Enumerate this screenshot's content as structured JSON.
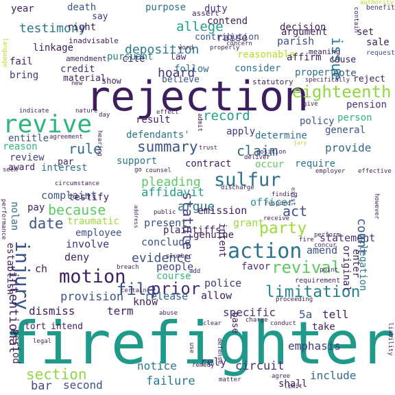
{
  "words": [
    {
      "text": "firefighter",
      "color": "#1f9a8a"
    },
    {
      "text": "rejection",
      "color": "#3e1f5e"
    },
    {
      "text": "revive",
      "color": "#2fb47c"
    },
    {
      "text": "injury",
      "color": "#3b528b"
    },
    {
      "text": "action",
      "color": "#2c728e"
    },
    {
      "text": "motion",
      "color": "#3e1f5e"
    },
    {
      "text": "sulfur",
      "color": "#2c728e"
    },
    {
      "text": "revival",
      "color": "#5ec962"
    },
    {
      "text": "eighteenth",
      "color": "#8fd744"
    },
    {
      "text": "limitation",
      "color": "#26828e"
    },
    {
      "text": "file",
      "color": "#3b528b"
    },
    {
      "text": "prior",
      "color": "#472d7b"
    },
    {
      "text": "section",
      "color": "#8fd744"
    },
    {
      "text": "statute",
      "color": "#453781"
    },
    {
      "text": "date",
      "color": "#3b528b"
    },
    {
      "text": "summary",
      "color": "#3b528b"
    },
    {
      "text": "party",
      "color": "#9bd93c"
    },
    {
      "text": "claim",
      "color": "#31688e"
    },
    {
      "text": "rule",
      "color": "#31688e"
    },
    {
      "text": "because",
      "color": "#5ec962"
    },
    {
      "text": "evidence",
      "color": "#3b528b"
    },
    {
      "text": "record",
      "color": "#1fa187"
    },
    {
      "text": "issue",
      "color": "#2a788e"
    },
    {
      "text": "act",
      "color": "#3b528b"
    },
    {
      "text": "count",
      "color": "#3b528b"
    },
    {
      "text": "allege",
      "color": "#1fa187"
    },
    {
      "text": "deposition",
      "color": "#2a788e"
    },
    {
      "text": "hoard",
      "color": "#46337e"
    },
    {
      "text": "pleading",
      "color": "#5ec962"
    },
    {
      "text": "argue",
      "color": "#2c728e"
    },
    {
      "text": "affidavit",
      "color": "#1fa187"
    },
    {
      "text": "provision",
      "color": "#3b528b"
    },
    {
      "text": "specific",
      "color": "#46337e"
    },
    {
      "text": "emphasis",
      "color": "#44397e"
    },
    {
      "text": "circuit",
      "color": "#472d7b"
    },
    {
      "text": "failure",
      "color": "#2a788e"
    },
    {
      "text": "notice",
      "color": "#2a788e"
    },
    {
      "text": "bar",
      "color": "#404688"
    },
    {
      "text": "second",
      "color": "#3b528b"
    },
    {
      "text": "include",
      "color": "#31688e"
    },
    {
      "text": "rely",
      "color": "#46337e"
    },
    {
      "text": "officer",
      "color": "#20928c"
    },
    {
      "text": "emission",
      "color": "#3e1f5e"
    },
    {
      "text": "grant",
      "color": "#9bd93c"
    },
    {
      "text": "present",
      "color": "#3b528b"
    },
    {
      "text": "statement",
      "color": "#46337e"
    },
    {
      "text": "amend",
      "color": "#3b528b"
    },
    {
      "text": "allegation",
      "color": "#2a788e"
    },
    {
      "text": "5a",
      "color": "#3b528b"
    },
    {
      "text": "tell",
      "color": "#3e1f5e"
    },
    {
      "text": "dismiss",
      "color": "#3e1f5e"
    },
    {
      "text": "term",
      "color": "#3e1f5e"
    },
    {
      "text": "release",
      "color": "#31688e"
    },
    {
      "text": "allow",
      "color": "#3e1f5e"
    },
    {
      "text": "police",
      "color": "#46337e"
    },
    {
      "text": "people",
      "color": "#404688"
    },
    {
      "text": "course",
      "color": "#35b779"
    },
    {
      "text": "favor",
      "color": "#46337e"
    },
    {
      "text": "know",
      "color": "#3e1f5e"
    },
    {
      "text": "conclude",
      "color": "#3b528b"
    },
    {
      "text": "deny",
      "color": "#3e1f5e"
    },
    {
      "text": "involve",
      "color": "#46337e"
    },
    {
      "text": "employee",
      "color": "#3b528b"
    },
    {
      "text": "traumatic",
      "color": "#9bd93c"
    },
    {
      "text": "complaint",
      "color": "#3b528b"
    },
    {
      "text": "testify",
      "color": "#3e1f5e"
    },
    {
      "text": "pay",
      "color": "#3e1f5e"
    },
    {
      "text": "nolan",
      "color": "#31688e"
    },
    {
      "text": "interest",
      "color": "#2c728e"
    },
    {
      "text": "support",
      "color": "#2a788e"
    },
    {
      "text": "contract",
      "color": "#3e1f5e"
    },
    {
      "text": "occur",
      "color": "#5ec962"
    },
    {
      "text": "require",
      "color": "#2c728e"
    },
    {
      "text": "provide",
      "color": "#31688e"
    },
    {
      "text": "general",
      "color": "#3b528b"
    },
    {
      "text": "person",
      "color": "#2fb47c"
    },
    {
      "text": "policy",
      "color": "#3b528b"
    },
    {
      "text": "determine",
      "color": "#2c728e"
    },
    {
      "text": "apply",
      "color": "#46337e"
    },
    {
      "text": "result",
      "color": "#3e1f5e"
    },
    {
      "text": "defendants'",
      "color": "#2c728e"
    },
    {
      "text": "review",
      "color": "#404688"
    },
    {
      "text": "par",
      "color": "#3e1f5e"
    },
    {
      "text": "award",
      "color": "#3e1f5e"
    },
    {
      "text": "entitle",
      "color": "#3b528b"
    },
    {
      "text": "reason",
      "color": "#35b779"
    },
    {
      "text": "bring",
      "color": "#46337e"
    },
    {
      "text": "fail",
      "color": "#3e1f5e"
    },
    {
      "text": "credit",
      "color": "#46337e"
    },
    {
      "text": "pursuant",
      "color": "#26828e"
    },
    {
      "text": "linkage",
      "color": "#3e1f5e"
    },
    {
      "text": "cite",
      "color": "#3e1f5e"
    },
    {
      "text": "law",
      "color": "#46337e"
    },
    {
      "text": "testimony",
      "color": "#2a788e"
    },
    {
      "text": "right",
      "color": "#3e1f5e"
    },
    {
      "text": "year",
      "color": "#3e1f5e"
    },
    {
      "text": "death",
      "color": "#3b528b"
    },
    {
      "text": "purpose",
      "color": "#2c728e"
    },
    {
      "text": "say",
      "color": "#46337e"
    },
    {
      "text": "decision",
      "color": "#3e1f5e"
    },
    {
      "text": "duty",
      "color": "#46337e"
    },
    {
      "text": "contend",
      "color": "#3e1f5e"
    },
    {
      "text": "contribution",
      "color": "#3b528b"
    },
    {
      "text": "raise",
      "color": "#46337e"
    },
    {
      "text": "parish",
      "color": "#3b528b"
    },
    {
      "text": "argument",
      "color": "#3e1f5e"
    },
    {
      "text": "reasonable",
      "color": "#b5de2b"
    },
    {
      "text": "follow",
      "color": "#2c728e"
    },
    {
      "text": "consider",
      "color": "#2c728e"
    },
    {
      "text": "affirm",
      "color": "#3e1f5e"
    },
    {
      "text": "cause",
      "color": "#3e1f5e"
    },
    {
      "text": "note",
      "color": "#3b528b"
    },
    {
      "text": "property",
      "color": "#2c728e"
    },
    {
      "text": "reject",
      "color": "#3e1f5e"
    },
    {
      "text": "set",
      "color": "#3e1f5e"
    },
    {
      "text": "sale",
      "color": "#3e1f5e"
    },
    {
      "text": "benefit",
      "color": "#46337e"
    },
    {
      "text": "request",
      "color": "#3b528b"
    },
    {
      "text": "pension",
      "color": "#46337e"
    },
    {
      "text": "material",
      "color": "#3e1f5e"
    },
    {
      "text": "believe",
      "color": "#3b528b"
    },
    {
      "text": "show",
      "color": "#3e1f5e"
    },
    {
      "text": "amendment",
      "color": "#3e1f5e"
    },
    {
      "text": "inadvisable",
      "color": "#3e1f5e"
    },
    {
      "text": "statutory",
      "color": "#3e1f5e"
    },
    {
      "text": "meaning",
      "color": "#3e1f5e"
    },
    {
      "text": "assert",
      "color": "#3e1f5e"
    },
    {
      "text": "authority",
      "color": "#b5de2b"
    },
    {
      "text": "contain",
      "color": "#3e1f5e"
    },
    {
      "text": "concern",
      "color": "#3e1f5e"
    },
    {
      "text": "word",
      "color": "#3e1f5e"
    },
    {
      "text": "properly",
      "color": "#3e1f5e"
    },
    {
      "text": "language",
      "color": "#b5de2b"
    },
    {
      "text": "specifically",
      "color": "#3e1f5e"
    },
    {
      "text": "new",
      "color": "#3e1f5e"
    },
    {
      "text": "indicate",
      "color": "#3e1f5e"
    },
    {
      "text": "nature",
      "color": "#3e1f5e"
    },
    {
      "text": "day",
      "color": "#3e1f5e"
    },
    {
      "text": "effect",
      "color": "#3e1f5e"
    },
    {
      "text": "admit",
      "color": "#3e1f5e"
    },
    {
      "text": "give",
      "color": "#3e1f5e"
    },
    {
      "text": "agreement",
      "color": "#3e1f5e"
    },
    {
      "text": "hearing",
      "color": "#3e1f5e"
    },
    {
      "text": "trust",
      "color": "#3e1f5e"
    },
    {
      "text": "position",
      "color": "#3e1f5e"
    },
    {
      "text": "jury",
      "color": "#b5de2b"
    },
    {
      "text": "deliver",
      "color": "#3e1f5e"
    },
    {
      "text": "seek",
      "color": "#3e1f5e"
    },
    {
      "text": "go",
      "color": "#3e1f5e"
    },
    {
      "text": "counsel",
      "color": "#3e1f5e"
    },
    {
      "text": "employer",
      "color": "#3e1f5e"
    },
    {
      "text": "effective",
      "color": "#3e1f5e"
    },
    {
      "text": "discharge",
      "color": "#3e1f5e"
    },
    {
      "text": "finding",
      "color": "#3e1f5e"
    },
    {
      "text": "circumstance",
      "color": "#3e1f5e"
    },
    {
      "text": "exist",
      "color": "#3b528b"
    },
    {
      "text": "performance",
      "color": "#3e1f5e"
    },
    {
      "text": "respond",
      "color": "#46337e"
    },
    {
      "text": "receive",
      "color": "#3e1f5e"
    },
    {
      "text": "address",
      "color": "#3e1f5e"
    },
    {
      "text": "public",
      "color": "#3e1f5e"
    },
    {
      "text": "plaintiffs'",
      "color": "#3e1f5e"
    },
    {
      "text": "however",
      "color": "#3e1f5e"
    },
    {
      "text": "genuine",
      "color": "#3e1f5e"
    },
    {
      "text": "enter",
      "color": "#3e1f5e"
    },
    {
      "text": "perform",
      "color": "#3e1f5e"
    },
    {
      "text": "fire",
      "color": "#3e1f5e"
    },
    {
      "text": "concur",
      "color": "#3e1f5e"
    },
    {
      "text": "original",
      "color": "#3e1f5e"
    },
    {
      "text": "establish",
      "color": "#3e1f5e"
    },
    {
      "text": "intent",
      "color": "#3e1f5e"
    },
    {
      "text": "ch",
      "color": "#3e1f5e"
    },
    {
      "text": "slumber",
      "color": "#3e1f5e"
    },
    {
      "text": "add",
      "color": "#3e1f5e"
    },
    {
      "text": "breach",
      "color": "#3e1f5e"
    },
    {
      "text": "point",
      "color": "#3e1f5e"
    },
    {
      "text": "requirement",
      "color": "#3e1f5e"
    },
    {
      "text": "certain",
      "color": "#3e1f5e"
    },
    {
      "text": "proceeding",
      "color": "#3e1f5e"
    },
    {
      "text": "abuse",
      "color": "#3e1f5e"
    },
    {
      "text": "charge",
      "color": "#3e1f5e"
    },
    {
      "text": "conduct",
      "color": "#3e1f5e"
    },
    {
      "text": "take",
      "color": "#3e1f5e"
    },
    {
      "text": "intend",
      "color": "#3e1f5e"
    },
    {
      "text": "tort",
      "color": "#3e1f5e"
    },
    {
      "text": "clear",
      "color": "#3e1f5e"
    },
    {
      "text": "base",
      "color": "#3e1f5e"
    },
    {
      "text": "legal",
      "color": "#3e1f5e"
    },
    {
      "text": "defense",
      "color": "#3e1f5e"
    },
    {
      "text": "use",
      "color": "#3e1f5e"
    },
    {
      "text": "remedy",
      "color": "#3e1f5e"
    },
    {
      "text": "matter",
      "color": "#3e1f5e"
    },
    {
      "text": "agree",
      "color": "#3e1f5e"
    },
    {
      "text": "shall",
      "color": "#3e1f5e"
    },
    {
      "text": "limit",
      "color": "#3e1f5e"
    },
    {
      "text": "liability",
      "color": "#3e1f5e"
    },
    {
      "text": "intentional",
      "color": "#3e1f5e"
    },
    {
      "text": "period",
      "color": "#3e1f5e"
    }
  ]
}
